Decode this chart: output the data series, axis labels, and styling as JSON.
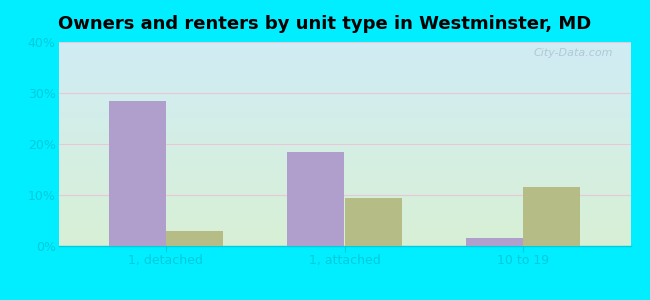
{
  "title": "Owners and renters by unit type in Westminster, MD",
  "categories": [
    "1, detached",
    "1, attached",
    "10 to 19"
  ],
  "owner_values": [
    28.5,
    18.5,
    1.5
  ],
  "renter_values": [
    3.0,
    9.5,
    11.5
  ],
  "owner_color": "#b09fcc",
  "renter_color": "#b5bc85",
  "ylim": [
    0,
    40
  ],
  "yticks": [
    0,
    10,
    20,
    30,
    40
  ],
  "ytick_labels": [
    "0%",
    "10%",
    "20%",
    "30%",
    "40%"
  ],
  "bar_width": 0.32,
  "background_color": "#00eeff",
  "plot_bg_top": "#d0ecf5",
  "plot_bg_bottom": "#d8f0d5",
  "watermark": "City-Data.com",
  "title_fontsize": 13,
  "tick_fontsize": 9,
  "legend_fontsize": 9,
  "grid_color": "#e8c8d8",
  "tick_color": "#00ccdd",
  "spine_color": "#00ccdd"
}
